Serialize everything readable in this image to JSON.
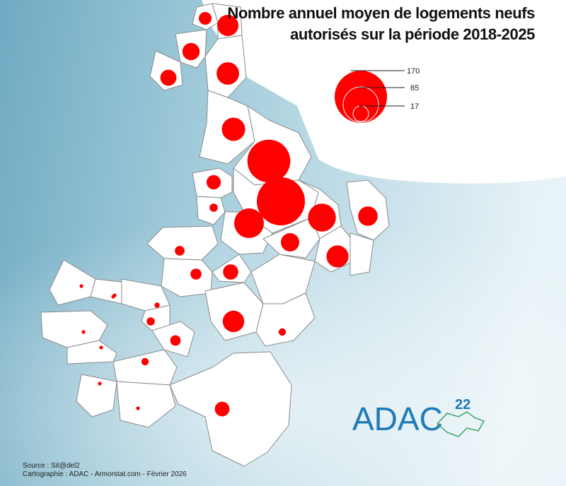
{
  "title": {
    "line1": "Nombre annuel moyen de logements neufs",
    "line2": "autorisés sur la période 2018-2025"
  },
  "legend": {
    "values": [
      "170",
      "85",
      "17"
    ],
    "symbol_color": "#ff0000"
  },
  "communes": [
    {
      "v": 12
    },
    {
      "v": 33
    },
    {
      "v": 22
    },
    {
      "v": 19
    },
    {
      "v": 37
    },
    {
      "v": 40
    },
    {
      "v": 135
    },
    {
      "v": 15
    },
    {
      "v": 5
    },
    {
      "v": 170
    },
    {
      "v": 57
    },
    {
      "v": 65
    },
    {
      "v": 25
    },
    {
      "v": 36
    },
    {
      "v": 28
    },
    {
      "v": 4
    },
    {
      "v": 7
    },
    {
      "v": 9
    },
    {
      "v": 17
    },
    {
      "v": 1
    },
    {
      "v": 1
    },
    {
      "v": 2
    },
    {
      "v": 5
    },
    {
      "v": 1
    },
    {
      "v": 1
    },
    {
      "v": 8
    },
    {
      "v": 1
    },
    {
      "v": 34
    },
    {
      "v": 4
    },
    {
      "v": 1
    },
    {
      "v": 1
    },
    {
      "v": 16
    }
  ],
  "logo": {
    "text": "ADAC",
    "superscript": "22",
    "color": "#1e7ab8",
    "accent": "#2aa05a"
  },
  "credits": {
    "source": "Source : Sit@del2",
    "cartography": "Cartographie : ADAC - Armorstat.com - Février 2026"
  },
  "colors": {
    "sea": "#7fb6cc",
    "land": "#ffffff",
    "boundary": "#8a8a8a",
    "symbol": "#ff0000"
  }
}
